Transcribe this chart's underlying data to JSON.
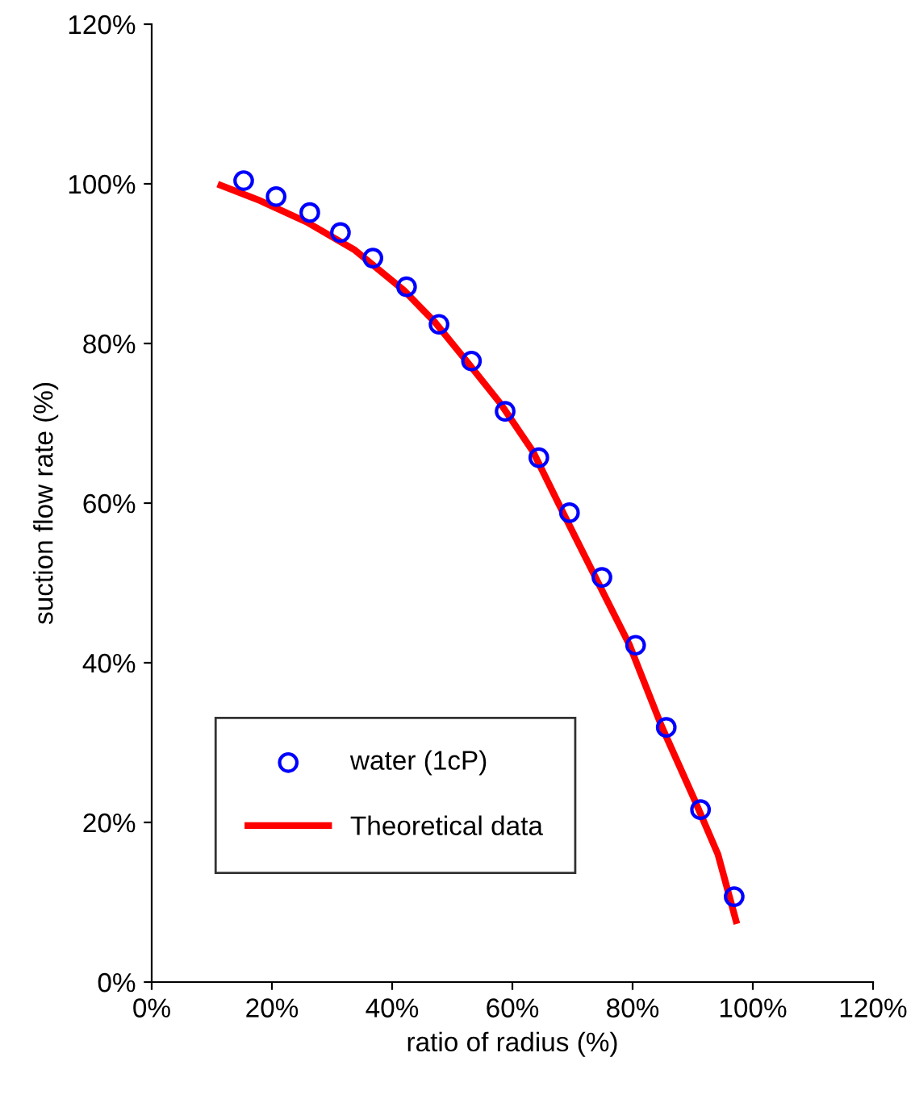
{
  "chart_data": {
    "type": "scatter",
    "xlabel": "ratio of radius (%)",
    "ylabel": "suction flow rate (%)",
    "xlim": [
      0,
      120
    ],
    "ylim": [
      0,
      120
    ],
    "xticks": [
      {
        "value": 0,
        "label": "0%"
      },
      {
        "value": 20,
        "label": "20%"
      },
      {
        "value": 40,
        "label": "40%"
      },
      {
        "value": 60,
        "label": "60%"
      },
      {
        "value": 80,
        "label": "80%"
      },
      {
        "value": 100,
        "label": "100%"
      },
      {
        "value": 120,
        "label": "120%"
      }
    ],
    "yticks": [
      {
        "value": 0,
        "label": "0%"
      },
      {
        "value": 20,
        "label": "20%"
      },
      {
        "value": 40,
        "label": "40%"
      },
      {
        "value": 60,
        "label": "60%"
      },
      {
        "value": 80,
        "label": "80%"
      },
      {
        "value": 100,
        "label": "100%"
      },
      {
        "value": 120,
        "label": "120%"
      }
    ],
    "grid": false,
    "legend": "bottom left",
    "series": [
      {
        "name": "water (1cP)",
        "marker": "circle",
        "color": "#0000ff",
        "x": [
          15.3,
          20.7,
          26.3,
          31.4,
          36.8,
          42.4,
          47.8,
          53.2,
          58.8,
          64.4,
          69.5,
          74.9,
          80.5,
          85.6,
          91.3,
          96.9
        ],
        "values": [
          100.4,
          98.4,
          96.4,
          93.9,
          90.7,
          87.1,
          82.4,
          77.8,
          71.5,
          65.7,
          58.8,
          50.7,
          42.2,
          31.9,
          21.6,
          10.7
        ]
      },
      {
        "name": "Theoretical data",
        "type": "line",
        "marker": "none",
        "line_style": "solid",
        "color": "#ff0000",
        "x": [
          11.5,
          17.7,
          25.8,
          33.8,
          41.9,
          47.2,
          52.6,
          58,
          63.4,
          68.7,
          74.1,
          79.5,
          84.8,
          90.2,
          94.2,
          97.2
        ],
        "values": [
          99.8,
          98,
          95.2,
          91.7,
          86.7,
          82.6,
          77.6,
          72.5,
          66.5,
          58.4,
          50.3,
          42.2,
          32.1,
          23,
          16,
          7.7
        ]
      }
    ]
  }
}
